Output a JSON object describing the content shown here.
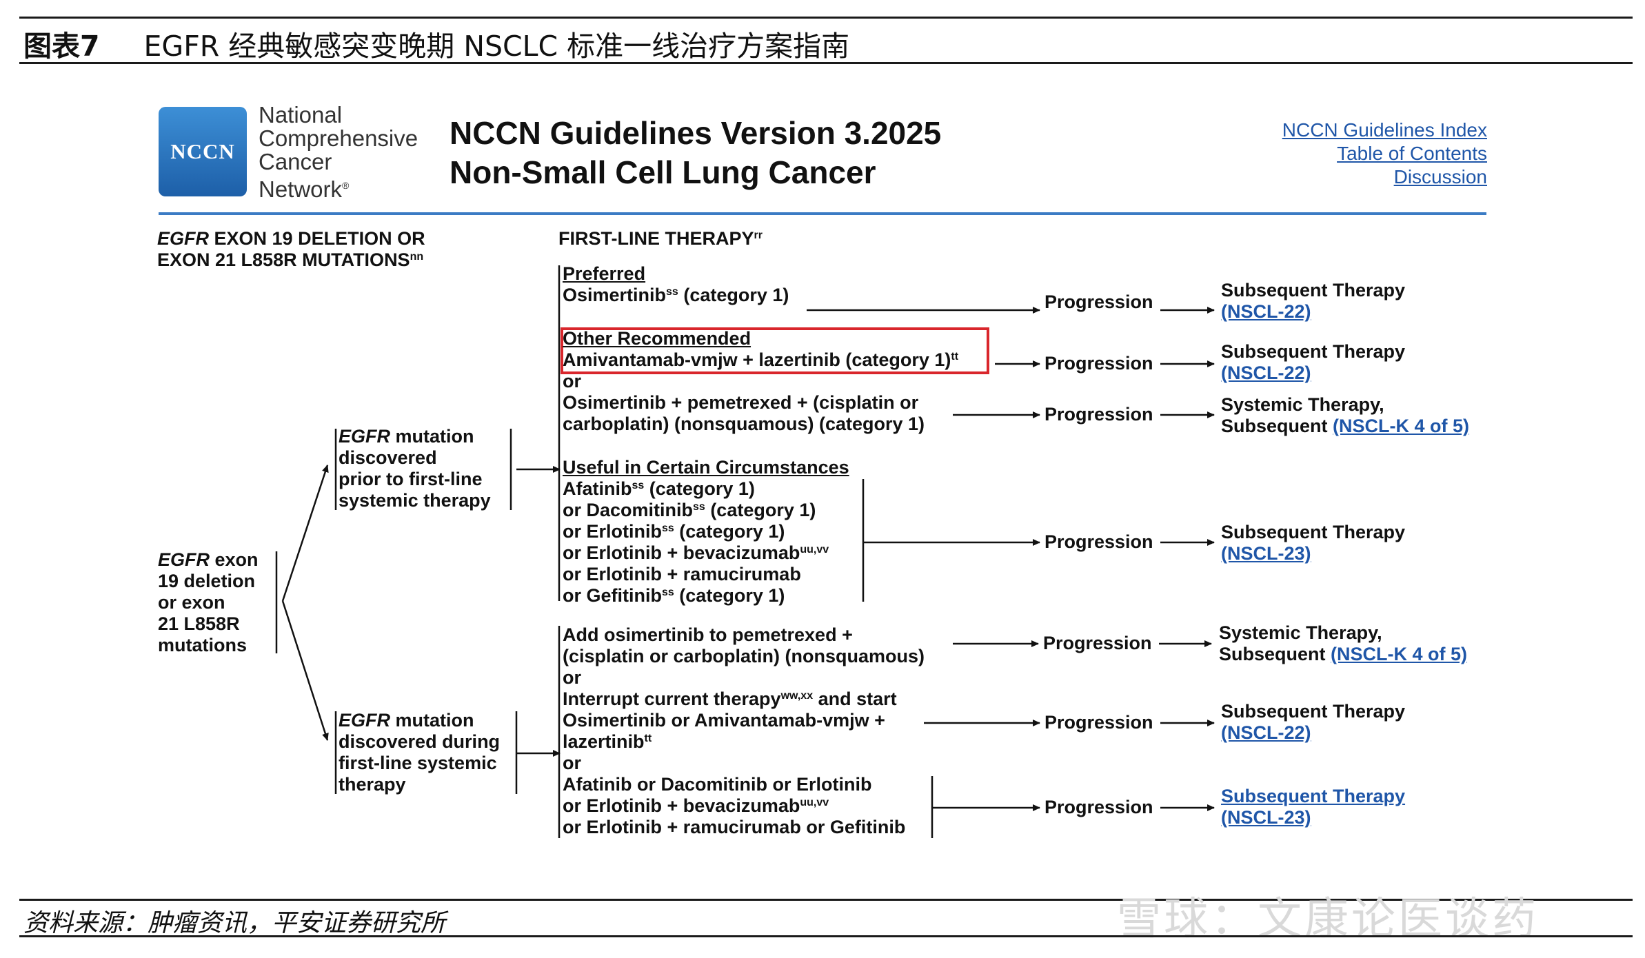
{
  "figure": {
    "label": "图表7",
    "title": "EGFR 经典敏感突变晚期 NSCLC 标准一线治疗方案指南",
    "source": "资料来源：肿瘤资讯，平安证券研究所",
    "watermark": "雪球：文康论医谈药"
  },
  "header": {
    "logo_text": "NCCN",
    "org_name": [
      "National",
      "Comprehensive",
      "Cancer",
      "Network"
    ],
    "registered_mark": "®",
    "title_line1": "NCCN Guidelines Version 3.2025",
    "title_line2": "Non-Small Cell Lung Cancer",
    "links": [
      "NCCN Guidelines Index",
      "Table of Contents",
      "Discussion"
    ]
  },
  "columns": {
    "left_head_italic": "EGFR",
    "left_head_1": " EXON 19 DELETION OR",
    "left_head_2": "EXON 21 L858R MUTATIONS",
    "left_head_sup": "nn",
    "right_head": "FIRST-LINE THERAPY",
    "right_head_sup": "rr"
  },
  "root": {
    "italic": "EGFR",
    "line1": " exon",
    "line2": "19 deletion",
    "line3": "or exon",
    "line4": "21 L858R",
    "line5": "mutations"
  },
  "branch_prior": {
    "italic": "EGFR",
    "line1": " mutation",
    "line2": "discovered",
    "line3": "prior to first-line",
    "line4": "systemic therapy"
  },
  "branch_during": {
    "italic": "EGFR",
    "line1": " mutation",
    "line2": "discovered during",
    "line3": "first-line systemic",
    "line4": "therapy"
  },
  "therapies": {
    "preferred_label": "Preferred",
    "osimertinib": "Osimertinib",
    "osimertinib_sup": "ss",
    "osimertinib_cat": " (category 1)",
    "other_label": "Other Recommended",
    "amivantamab": "Amivantamab-vmjw + lazertinib (category 1)",
    "amivantamab_sup": "tt",
    "or": "or",
    "osi_pem_1": "Osimertinib + pemetrexed + (cisplatin or",
    "osi_pem_2": "carboplatin) (nonsquamous) (category 1)",
    "useful_label": "Useful in Certain Circumstances",
    "u1": "Afatinib",
    "u1_sup": "ss",
    "u1_tail": " (category 1)",
    "u2": "or Dacomitinib",
    "u2_sup": "ss",
    "u2_tail": " (category 1)",
    "u3": "or Erlotinib",
    "u3_sup": "ss",
    "u3_tail": " (category 1)",
    "u4": "or Erlotinib + bevacizumab",
    "u4_sup": "uu,vv",
    "u5": "or Erlotinib + ramucirumab",
    "u6": "or Gefitinib",
    "u6_sup": "ss",
    "u6_tail": " (category 1)",
    "d1_1": "Add osimertinib to pemetrexed +",
    "d1_2": "(cisplatin or carboplatin) (nonsquamous)",
    "d_or1": "or",
    "d2_1": "Interrupt current therapy",
    "d2_1_sup": "ww,xx",
    "d2_1_tail": " and start",
    "d2_2": "Osimertinib or Amivantamab-vmjw +",
    "d2_3": "lazertinib",
    "d2_3_sup": "tt",
    "d_or2": "or",
    "d3_1": "Afatinib or Dacomitinib or Erlotinib",
    "d3_2": "or Erlotinib + bevacizumab",
    "d3_2_sup": "uu,vv",
    "d3_3": "or Erlotinib + ramucirumab or Gefitinib"
  },
  "progression_label": "Progression",
  "outcomes": {
    "subsequent": "Subsequent Therapy",
    "systemic": "Systemic Therapy,",
    "subsequent_word": "Subsequent ",
    "link_22": "(NSCL-22)",
    "link_23": "(NSCL-23)",
    "link_k4": "(NSCL-K 4 of 5)"
  }
}
